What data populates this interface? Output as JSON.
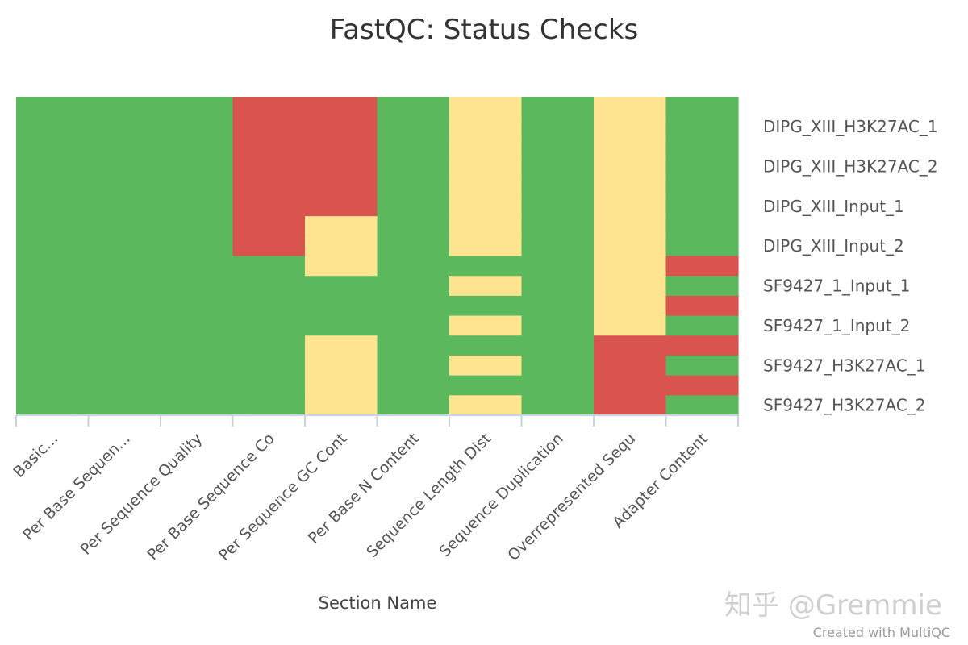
{
  "chart_data": {
    "type": "heatmap",
    "title": "FastQC: Status Checks",
    "xlabel": "Section Name",
    "ylabel": "",
    "categories": [
      "Basic...",
      "Per Base Sequen...",
      "Per Sequence Quality",
      "Per Base Sequence Co",
      "Per Sequence GC Cont",
      "Per Base N Content",
      "Sequence Length Dist",
      "Sequence Duplication",
      "Overrepresented Sequ",
      "Adapter Content"
    ],
    "rows": [
      "",
      "DIPG_XIII_H3K27AC_1",
      "",
      "DIPG_XIII_H3K27AC_2",
      "",
      "DIPG_XIII_Input_1",
      "",
      "DIPG_XIII_Input_2",
      "",
      "SF9427_1_Input_1",
      "",
      "SF9427_1_Input_2",
      "",
      "SF9427_H3K27AC_1",
      "",
      "SF9427_H3K27AC_2"
    ],
    "status_colors": {
      "pass": "#5cb85c",
      "warn": "#fee391",
      "fail": "#d9534f"
    },
    "values": [
      [
        "pass",
        "pass",
        "pass",
        "fail",
        "fail",
        "pass",
        "warn",
        "pass",
        "warn",
        "pass"
      ],
      [
        "pass",
        "pass",
        "pass",
        "fail",
        "fail",
        "pass",
        "warn",
        "pass",
        "warn",
        "pass"
      ],
      [
        "pass",
        "pass",
        "pass",
        "fail",
        "fail",
        "pass",
        "warn",
        "pass",
        "warn",
        "pass"
      ],
      [
        "pass",
        "pass",
        "pass",
        "fail",
        "fail",
        "pass",
        "warn",
        "pass",
        "warn",
        "pass"
      ],
      [
        "pass",
        "pass",
        "pass",
        "fail",
        "fail",
        "pass",
        "warn",
        "pass",
        "warn",
        "pass"
      ],
      [
        "pass",
        "pass",
        "pass",
        "fail",
        "fail",
        "pass",
        "warn",
        "pass",
        "warn",
        "pass"
      ],
      [
        "pass",
        "pass",
        "pass",
        "fail",
        "warn",
        "pass",
        "warn",
        "pass",
        "warn",
        "pass"
      ],
      [
        "pass",
        "pass",
        "pass",
        "fail",
        "warn",
        "pass",
        "warn",
        "pass",
        "warn",
        "pass"
      ],
      [
        "pass",
        "pass",
        "pass",
        "pass",
        "warn",
        "pass",
        "pass",
        "pass",
        "warn",
        "fail"
      ],
      [
        "pass",
        "pass",
        "pass",
        "pass",
        "pass",
        "pass",
        "warn",
        "pass",
        "warn",
        "pass"
      ],
      [
        "pass",
        "pass",
        "pass",
        "pass",
        "pass",
        "pass",
        "pass",
        "pass",
        "warn",
        "fail"
      ],
      [
        "pass",
        "pass",
        "pass",
        "pass",
        "pass",
        "pass",
        "warn",
        "pass",
        "warn",
        "pass"
      ],
      [
        "pass",
        "pass",
        "pass",
        "pass",
        "warn",
        "pass",
        "pass",
        "pass",
        "fail",
        "fail"
      ],
      [
        "pass",
        "pass",
        "pass",
        "pass",
        "warn",
        "pass",
        "warn",
        "pass",
        "fail",
        "pass"
      ],
      [
        "pass",
        "pass",
        "pass",
        "pass",
        "warn",
        "pass",
        "pass",
        "pass",
        "fail",
        "fail"
      ],
      [
        "pass",
        "pass",
        "pass",
        "pass",
        "warn",
        "pass",
        "warn",
        "pass",
        "fail",
        "pass"
      ]
    ],
    "legend": "none"
  },
  "watermark": "知乎 @Gremmie",
  "credits": "Created with MultiQC"
}
